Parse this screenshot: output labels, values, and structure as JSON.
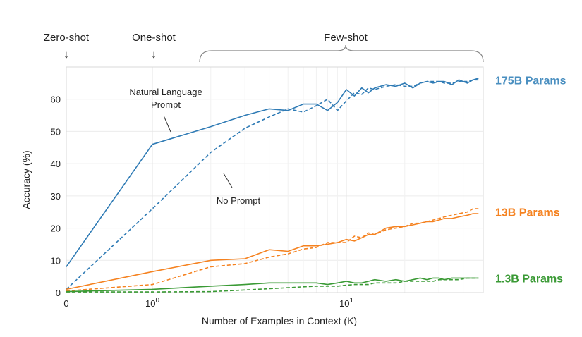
{
  "chart_data": {
    "type": "line",
    "title": "",
    "xlabel": "Number of Examples in Context  (K)",
    "ylabel": "Accuracy (%)",
    "xscale": "symlog",
    "xlim": [
      0,
      48
    ],
    "ylim": [
      0,
      70
    ],
    "grid": true,
    "x_ticks": [
      {
        "value": 0,
        "label": "0"
      },
      {
        "value": 1,
        "label": "10",
        "sup": "0"
      },
      {
        "value": 10,
        "label": "10",
        "sup": "1"
      }
    ],
    "y_ticks": [
      0,
      10,
      20,
      30,
      40,
      50,
      60
    ],
    "colors": {
      "blue": "#2f7bb5",
      "orange": "#f58220",
      "green": "#3a9a35",
      "blue_label": "#4a8fc0"
    },
    "series": [
      {
        "model": "175B Params",
        "style": "solid",
        "color": "#2f7bb5",
        "x": [
          0,
          1,
          2,
          3,
          4,
          5,
          6,
          7,
          8,
          9,
          10,
          11,
          12,
          13,
          14,
          16,
          18,
          20,
          22,
          24,
          26,
          28,
          30,
          32,
          35,
          38,
          42,
          45,
          48
        ],
        "y": [
          8,
          46,
          51.5,
          55,
          57,
          56.5,
          58.5,
          58.5,
          56.5,
          59,
          63,
          61,
          63.5,
          62,
          63.5,
          64.5,
          64,
          65,
          63.5,
          65,
          65.5,
          65,
          65.5,
          65.5,
          64.5,
          66,
          65,
          66,
          66.5
        ]
      },
      {
        "model": "175B Params",
        "style": "dashed",
        "color": "#2f7bb5",
        "x": [
          0,
          1,
          2,
          3,
          4,
          5,
          6,
          7,
          8,
          9,
          10,
          11,
          12,
          13,
          14,
          16,
          18,
          20,
          22,
          24,
          26,
          28,
          30,
          32,
          35,
          38,
          42,
          45,
          48
        ],
        "y": [
          1,
          26,
          43.5,
          51,
          54.5,
          57,
          56,
          58,
          60,
          56.5,
          59.5,
          62,
          61.5,
          63.5,
          63,
          64,
          64.5,
          64,
          64,
          65,
          65.5,
          65.5,
          65.5,
          65,
          65,
          65.5,
          65.5,
          66,
          66
        ]
      },
      {
        "model": "13B Params",
        "style": "solid",
        "color": "#f58220",
        "x": [
          0,
          1,
          2,
          3,
          4,
          5,
          6,
          7,
          8,
          9,
          10,
          11,
          12,
          13,
          14,
          16,
          18,
          20,
          22,
          24,
          26,
          28,
          30,
          32,
          35,
          38,
          42,
          45,
          48
        ],
        "y": [
          1,
          6.5,
          10,
          10.5,
          13.3,
          12.8,
          14.5,
          14.5,
          15,
          15.5,
          16.5,
          16,
          17,
          18,
          18,
          20,
          20.5,
          20.5,
          21,
          21.5,
          22,
          22,
          22.5,
          23,
          23,
          23.5,
          24,
          24.5,
          24.5
        ]
      },
      {
        "model": "13B Params",
        "style": "dashed",
        "color": "#f58220",
        "x": [
          0,
          1,
          2,
          3,
          4,
          5,
          6,
          7,
          8,
          9,
          10,
          11,
          12,
          13,
          14,
          16,
          18,
          20,
          22,
          24,
          26,
          28,
          30,
          32,
          35,
          38,
          42,
          45,
          48
        ],
        "y": [
          0.5,
          2.5,
          8,
          9,
          11,
          12,
          13.5,
          14,
          15.5,
          15.5,
          15.5,
          17.5,
          17,
          18.5,
          18,
          19.5,
          20,
          20.5,
          21.5,
          21.5,
          22,
          22.5,
          23,
          23.5,
          24,
          24.5,
          25,
          26,
          26
        ]
      },
      {
        "model": "1.3B Params",
        "style": "solid",
        "color": "#3a9a35",
        "x": [
          0,
          1,
          2,
          3,
          4,
          5,
          6,
          7,
          8,
          9,
          10,
          11,
          12,
          13,
          14,
          16,
          18,
          20,
          22,
          24,
          26,
          28,
          30,
          32,
          35,
          38,
          42,
          45,
          48
        ],
        "y": [
          0.3,
          1,
          2,
          2.5,
          3,
          3,
          3,
          3,
          2.5,
          3,
          3.5,
          3,
          3,
          3.5,
          4,
          3.5,
          4,
          3.5,
          4,
          4.5,
          4,
          4.5,
          4.5,
          4,
          4.5,
          4.5,
          4.5,
          4.5,
          4.5
        ]
      },
      {
        "model": "1.3B Params",
        "style": "dashed",
        "color": "#3a9a35",
        "x": [
          0,
          1,
          2,
          3,
          4,
          5,
          6,
          7,
          8,
          9,
          10,
          11,
          12,
          13,
          14,
          16,
          18,
          20,
          22,
          24,
          26,
          28,
          30,
          32,
          35,
          38,
          42,
          45,
          48
        ],
        "y": [
          0.2,
          0.2,
          0.3,
          0.8,
          1.2,
          1.5,
          1.8,
          2,
          2,
          2,
          2.3,
          2.5,
          2.5,
          2.5,
          3,
          3,
          3,
          3.5,
          3.5,
          3.5,
          3.5,
          3.5,
          4,
          4,
          4,
          4,
          4.5,
          4.5,
          4.5
        ]
      }
    ],
    "series_labels": [
      {
        "text": "175B Params",
        "color": "#4a8fc0",
        "y": 66
      },
      {
        "text": "13B Params",
        "color": "#f58220",
        "y": 25
      },
      {
        "text": "1.3B Params",
        "color": "#3a9a35",
        "y": 4.5
      }
    ],
    "annotations": {
      "natural_language_line1": "Natural Language",
      "natural_language_line2": "Prompt",
      "no_prompt": "No Prompt",
      "zero_shot": "Zero-shot",
      "one_shot": "One-shot",
      "few_shot": "Few-shot",
      "arrow_glyph": "↓"
    }
  }
}
